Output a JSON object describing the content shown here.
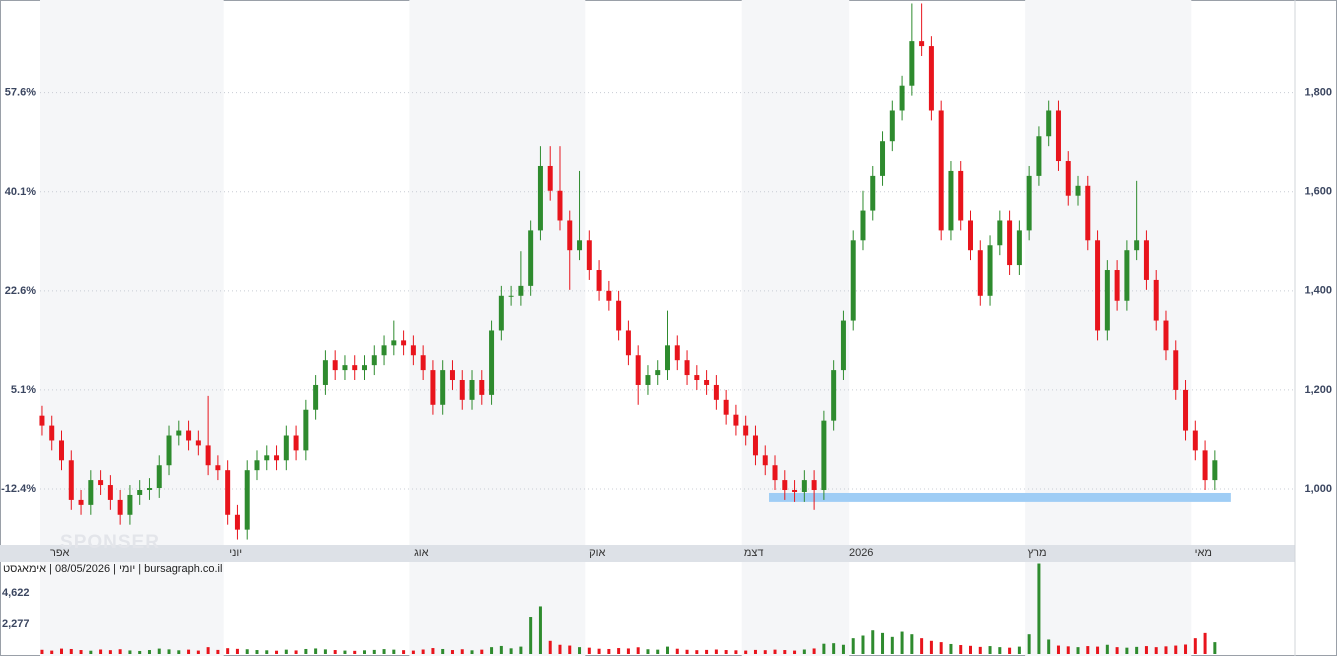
{
  "chart_data": {
    "type": "candlestick",
    "source": "יומי | 08/05/2026 | אימאגסט | bursagraph.co.il",
    "watermark": "SPONSER",
    "up_color": "#2e8b2e",
    "down_color": "#e8141c",
    "xlim": [
      -0.2,
      128.2
    ],
    "xticks": [
      {
        "value": 1,
        "label": "אפר"
      },
      {
        "value": 19,
        "label": "יוני"
      },
      {
        "value": 38,
        "label": "אוג"
      },
      {
        "value": 56,
        "label": "אוק"
      },
      {
        "value": 72,
        "label": "דצמ"
      },
      {
        "value": 83,
        "label": "2026"
      },
      {
        "value": 101,
        "label": "מרץ"
      },
      {
        "value": 118,
        "label": "מאי"
      }
    ],
    "ylim": [
      887,
      1987
    ],
    "yticks": [
      {
        "value": 1000,
        "label": "1,000"
      },
      {
        "value": 1200,
        "label": "1,200"
      },
      {
        "value": 1400,
        "label": "1,400"
      },
      {
        "value": 1600,
        "label": "1,600"
      },
      {
        "value": 1800,
        "label": "1,800"
      }
    ],
    "y2lim": [
      -22.3,
      74.0
    ],
    "y2ticks": [
      {
        "value": -12.4,
        "label": "-12.4%"
      },
      {
        "value": 5.1,
        "label": "5.1%"
      },
      {
        "value": 22.6,
        "label": "22.6%"
      },
      {
        "value": 40.1,
        "label": "40.1%"
      },
      {
        "value": 57.6,
        "label": "57.6%"
      }
    ],
    "grid": true,
    "highlight": {
      "low": 974,
      "high": 992,
      "start": 75,
      "color": "#9fcdf5"
    },
    "open": [
      1148,
      1128,
      1098,
      1058,
      978,
      968,
      1018,
      1008,
      978,
      948,
      988,
      998,
      1002,
      1048,
      1108,
      1118,
      1098,
      1088,
      1048,
      1038,
      948,
      918,
      1038,
      1058,
      1068,
      1058,
      1108,
      1078,
      1160,
      1210,
      1260,
      1240,
      1250,
      1240,
      1250,
      1270,
      1290,
      1300,
      1290,
      1270,
      1240,
      1170,
      1240,
      1220,
      1180,
      1220,
      1190,
      1320,
      1390,
      1390,
      1410,
      1522,
      1652,
      1602,
      1542,
      1482,
      1502,
      1442,
      1400,
      1380,
      1320,
      1270,
      1210,
      1230,
      1240,
      1290,
      1260,
      1230,
      1220,
      1210,
      1180,
      1150,
      1128,
      1108,
      1068,
      1048,
      1018,
      998,
      994,
      1018,
      998,
      1138,
      1240,
      1340,
      1502,
      1562,
      1632,
      1702,
      1764,
      1814,
      1904,
      1894,
      1764,
      1522,
      1642,
      1542,
      1482,
      1390,
      1492,
      1542,
      1452,
      1522,
      1632,
      1712,
      1764,
      1662,
      1592,
      1612,
      1502,
      1320,
      1442,
      1380,
      1482,
      1502,
      1422,
      1340,
      1280,
      1200,
      1118,
      1078,
      1018
    ],
    "high": [
      1168,
      1148,
      1118,
      1078,
      998,
      1038,
      1038,
      1028,
      998,
      1008,
      1018,
      1022,
      1068,
      1128,
      1138,
      1138,
      1118,
      1188,
      1068,
      1058,
      968,
      1058,
      1078,
      1088,
      1088,
      1128,
      1128,
      1180,
      1230,
      1280,
      1280,
      1270,
      1270,
      1270,
      1290,
      1310,
      1340,
      1320,
      1310,
      1290,
      1260,
      1260,
      1260,
      1240,
      1240,
      1240,
      1340,
      1410,
      1410,
      1480,
      1542,
      1692,
      1692,
      1692,
      1562,
      1642,
      1522,
      1462,
      1420,
      1400,
      1340,
      1290,
      1250,
      1260,
      1360,
      1310,
      1280,
      1250,
      1240,
      1230,
      1200,
      1170,
      1148,
      1128,
      1088,
      1068,
      1038,
      1018,
      1038,
      1038,
      1158,
      1260,
      1360,
      1522,
      1602,
      1652,
      1722,
      1784,
      1834,
      1980,
      1980,
      1914,
      1784,
      1662,
      1662,
      1562,
      1502,
      1512,
      1562,
      1562,
      1542,
      1652,
      1732,
      1784,
      1784,
      1682,
      1632,
      1632,
      1522,
      1462,
      1462,
      1502,
      1622,
      1522,
      1442,
      1360,
      1300,
      1220,
      1138,
      1098,
      1078
    ],
    "low": [
      1108,
      1078,
      1038,
      958,
      948,
      948,
      988,
      958,
      928,
      928,
      968,
      978,
      982,
      1028,
      1088,
      1078,
      1068,
      1028,
      1018,
      928,
      898,
      898,
      1018,
      1038,
      1038,
      1038,
      1058,
      1058,
      1140,
      1190,
      1220,
      1220,
      1220,
      1220,
      1230,
      1250,
      1270,
      1270,
      1250,
      1220,
      1150,
      1150,
      1200,
      1160,
      1160,
      1170,
      1170,
      1300,
      1370,
      1370,
      1390,
      1502,
      1582,
      1522,
      1402,
      1462,
      1422,
      1380,
      1360,
      1300,
      1250,
      1170,
      1190,
      1210,
      1220,
      1240,
      1210,
      1200,
      1190,
      1160,
      1130,
      1108,
      1088,
      1048,
      1028,
      998,
      978,
      974,
      974,
      958,
      978,
      1118,
      1220,
      1320,
      1482,
      1542,
      1612,
      1682,
      1744,
      1794,
      1874,
      1744,
      1502,
      1502,
      1522,
      1462,
      1370,
      1370,
      1472,
      1432,
      1432,
      1502,
      1612,
      1692,
      1642,
      1572,
      1572,
      1482,
      1300,
      1300,
      1360,
      1360,
      1462,
      1402,
      1320,
      1260,
      1180,
      1098,
      1058,
      998,
      998
    ],
    "close": [
      1128,
      1098,
      1058,
      978,
      968,
      1018,
      1008,
      978,
      948,
      988,
      998,
      1002,
      1048,
      1108,
      1118,
      1098,
      1088,
      1048,
      1038,
      948,
      918,
      1038,
      1058,
      1068,
      1058,
      1108,
      1078,
      1160,
      1210,
      1260,
      1240,
      1250,
      1240,
      1250,
      1270,
      1290,
      1300,
      1290,
      1270,
      1240,
      1170,
      1240,
      1220,
      1180,
      1220,
      1190,
      1320,
      1390,
      1390,
      1410,
      1522,
      1652,
      1602,
      1542,
      1482,
      1502,
      1442,
      1400,
      1380,
      1320,
      1270,
      1210,
      1230,
      1240,
      1290,
      1260,
      1230,
      1220,
      1210,
      1180,
      1150,
      1128,
      1108,
      1068,
      1048,
      1018,
      998,
      994,
      1018,
      998,
      1138,
      1240,
      1340,
      1502,
      1562,
      1632,
      1702,
      1764,
      1814,
      1904,
      1894,
      1764,
      1522,
      1642,
      1542,
      1482,
      1390,
      1492,
      1542,
      1452,
      1522,
      1632,
      1712,
      1764,
      1662,
      1592,
      1612,
      1502,
      1320,
      1442,
      1380,
      1482,
      1502,
      1422,
      1340,
      1280,
      1200,
      1118,
      1078,
      1018,
      1058
    ],
    "volume_lim": [
      0,
      6890
    ],
    "volume_ticks": [
      {
        "value": 2277,
        "label": "2,277"
      },
      {
        "value": 4622,
        "label": "4,622"
      }
    ],
    "volume": [
      320,
      260,
      410,
      380,
      300,
      250,
      340,
      290,
      360,
      270,
      230,
      300,
      410,
      350,
      280,
      330,
      260,
      520,
      310,
      440,
      390,
      360,
      300,
      280,
      250,
      330,
      270,
      380,
      420,
      350,
      300,
      260,
      240,
      280,
      310,
      370,
      330,
      290,
      260,
      340,
      450,
      380,
      300,
      360,
      280,
      330,
      520,
      610,
      430,
      560,
      2800,
      3600,
      1000,
      700,
      640,
      520,
      480,
      400,
      380,
      450,
      420,
      510,
      360,
      330,
      560,
      400,
      320,
      290,
      310,
      340,
      300,
      280,
      260,
      310,
      290,
      330,
      300,
      260,
      340,
      420,
      780,
      820,
      700,
      1200,
      1400,
      1800,
      1600,
      1300,
      1700,
      1500,
      1200,
      1000,
      900,
      760,
      680,
      620,
      540,
      600,
      520,
      480,
      560,
      1500,
      6850,
      1100,
      640,
      580,
      520,
      600,
      560,
      700,
      520,
      480,
      540,
      600,
      520,
      580,
      640,
      720,
      1200,
      1600,
      900
    ]
  }
}
